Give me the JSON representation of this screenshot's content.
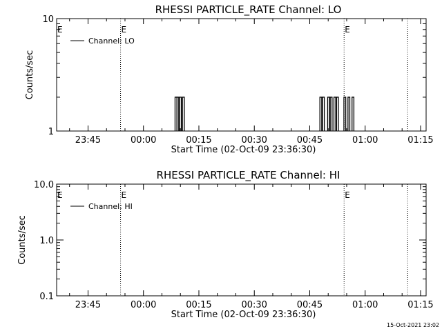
{
  "footer": {
    "timestamp": "15-Oct-2021 23:02"
  },
  "chart_data": [
    {
      "type": "line",
      "title": "RHESSI PARTICLE_RATE Channel: LO",
      "xlabel": "Start Time (02-Oct-09 23:36:30)",
      "ylabel": "Counts/sec",
      "y_scale": "log",
      "ylim": [
        1,
        10
      ],
      "y_ticks": [
        {
          "value": 1,
          "label": "1"
        },
        {
          "value": 10,
          "label": "10"
        }
      ],
      "xlim_minutes": [
        0,
        100
      ],
      "x_ticks": [
        {
          "value": 8.5,
          "label": "23:45"
        },
        {
          "value": 23.5,
          "label": "00:00"
        },
        {
          "value": 38.5,
          "label": "00:15"
        },
        {
          "value": 53.5,
          "label": "00:30"
        },
        {
          "value": 68.5,
          "label": "00:45"
        },
        {
          "value": 83.5,
          "label": "01:00"
        },
        {
          "value": 98.5,
          "label": "01:15"
        }
      ],
      "markers": [
        {
          "value": 17.3,
          "label": "E"
        },
        {
          "value": 77.8,
          "label": "E"
        },
        {
          "value": 95.0,
          "label": ""
        }
      ],
      "legend_position": "top-left",
      "series": [
        {
          "name": "Channel: LO",
          "x": [
            32.3,
            32.8,
            33.5,
            34.3,
            71.5,
            72.2,
            73.6,
            74.3,
            75.3,
            76.0,
            78.0,
            79.1,
            80.2
          ],
          "values": [
            2,
            2,
            2,
            2,
            2,
            2,
            2,
            2,
            2,
            2,
            2,
            2,
            2
          ]
        }
      ]
    },
    {
      "type": "line",
      "title": "RHESSI PARTICLE_RATE Channel: HI",
      "xlabel": "Start Time (02-Oct-09 23:36:30)",
      "ylabel": "Counts/sec",
      "y_scale": "log",
      "ylim": [
        0.1,
        10
      ],
      "y_ticks": [
        {
          "value": 0.1,
          "label": "0.1"
        },
        {
          "value": 1,
          "label": "1.0"
        },
        {
          "value": 10,
          "label": "10.0"
        }
      ],
      "xlim_minutes": [
        0,
        100
      ],
      "x_ticks": [
        {
          "value": 8.5,
          "label": "23:45"
        },
        {
          "value": 23.5,
          "label": "00:00"
        },
        {
          "value": 38.5,
          "label": "00:15"
        },
        {
          "value": 53.5,
          "label": "00:30"
        },
        {
          "value": 68.5,
          "label": "00:45"
        },
        {
          "value": 83.5,
          "label": "01:00"
        },
        {
          "value": 98.5,
          "label": "01:15"
        }
      ],
      "markers": [
        {
          "value": 17.3,
          "label": "E"
        },
        {
          "value": 77.8,
          "label": "E"
        },
        {
          "value": 95.0,
          "label": ""
        }
      ],
      "legend_position": "top-left",
      "series": [
        {
          "name": "Channel: HI",
          "x": [],
          "values": []
        }
      ]
    }
  ]
}
